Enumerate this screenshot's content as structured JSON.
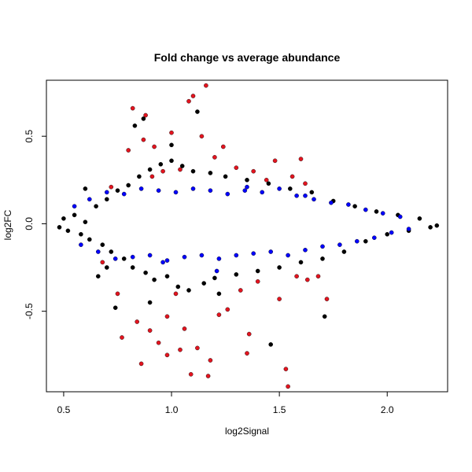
{
  "chart_data": {
    "type": "scatter",
    "title": "Fold change vs average abundance",
    "xlabel": "log2Signal",
    "ylabel": "log2FC",
    "xlim": [
      0.42,
      2.28
    ],
    "ylim": [
      -0.96,
      0.82
    ],
    "xticks": [
      0.5,
      1.0,
      1.5,
      2.0
    ],
    "xtick_labels": [
      "0.5",
      "1.0",
      "1.5",
      "2.0"
    ],
    "yticks": [
      -0.5,
      0.0,
      0.5
    ],
    "ytick_labels": [
      "-0.5",
      "0.0",
      "0.5"
    ],
    "grid": false,
    "legend": "none",
    "series": [
      {
        "color": "#000000",
        "points": [
          [
            0.48,
            -0.02
          ],
          [
            0.5,
            0.03
          ],
          [
            0.52,
            -0.04
          ],
          [
            0.55,
            0.05
          ],
          [
            0.58,
            -0.06
          ],
          [
            0.6,
            0.01
          ],
          [
            0.62,
            -0.09
          ],
          [
            0.65,
            0.1
          ],
          [
            0.68,
            -0.12
          ],
          [
            0.7,
            0.14
          ],
          [
            0.72,
            -0.16
          ],
          [
            0.75,
            0.19
          ],
          [
            0.78,
            -0.2
          ],
          [
            0.8,
            0.22
          ],
          [
            0.82,
            -0.25
          ],
          [
            0.85,
            0.27
          ],
          [
            0.88,
            -0.28
          ],
          [
            0.9,
            0.31
          ],
          [
            0.92,
            -0.32
          ],
          [
            0.95,
            0.34
          ],
          [
            0.98,
            -0.3
          ],
          [
            1.0,
            0.36
          ],
          [
            1.03,
            -0.36
          ],
          [
            1.05,
            0.33
          ],
          [
            1.08,
            -0.38
          ],
          [
            1.1,
            0.3
          ],
          [
            1.12,
            0.64
          ],
          [
            1.15,
            -0.34
          ],
          [
            1.18,
            0.29
          ],
          [
            1.2,
            -0.31
          ],
          [
            1.25,
            0.27
          ],
          [
            1.3,
            -0.29
          ],
          [
            1.35,
            0.25
          ],
          [
            1.4,
            -0.27
          ],
          [
            1.45,
            0.23
          ],
          [
            1.46,
            -0.69
          ],
          [
            1.5,
            -0.25
          ],
          [
            1.55,
            0.2
          ],
          [
            1.6,
            -0.22
          ],
          [
            1.65,
            0.18
          ],
          [
            1.7,
            -0.2
          ],
          [
            1.71,
            -0.53
          ],
          [
            1.75,
            0.13
          ],
          [
            1.8,
            -0.16
          ],
          [
            1.85,
            0.1
          ],
          [
            1.9,
            -0.1
          ],
          [
            1.95,
            0.07
          ],
          [
            2.0,
            -0.06
          ],
          [
            2.05,
            0.05
          ],
          [
            2.1,
            -0.04
          ],
          [
            2.15,
            0.03
          ],
          [
            2.2,
            -0.02
          ],
          [
            2.23,
            -0.01
          ],
          [
            0.83,
            0.56
          ],
          [
            0.9,
            -0.45
          ],
          [
            1.0,
            0.45
          ],
          [
            0.74,
            -0.48
          ],
          [
            1.22,
            -0.4
          ],
          [
            0.87,
            0.6
          ],
          [
            0.66,
            -0.3
          ],
          [
            0.6,
            0.2
          ],
          [
            0.7,
            -0.25
          ]
        ]
      },
      {
        "color": "#0000ff",
        "points": [
          [
            0.55,
            0.1
          ],
          [
            0.58,
            -0.12
          ],
          [
            0.62,
            0.14
          ],
          [
            0.66,
            -0.16
          ],
          [
            0.7,
            0.18
          ],
          [
            0.74,
            -0.2
          ],
          [
            0.78,
            0.17
          ],
          [
            0.82,
            -0.19
          ],
          [
            0.86,
            0.2
          ],
          [
            0.9,
            -0.18
          ],
          [
            0.94,
            0.19
          ],
          [
            0.98,
            -0.21
          ],
          [
            1.02,
            0.18
          ],
          [
            1.06,
            -0.19
          ],
          [
            1.1,
            0.2
          ],
          [
            1.14,
            -0.18
          ],
          [
            1.18,
            0.19
          ],
          [
            1.22,
            -0.2
          ],
          [
            1.26,
            0.17
          ],
          [
            1.3,
            -0.18
          ],
          [
            1.34,
            0.19
          ],
          [
            1.38,
            -0.17
          ],
          [
            1.42,
            0.18
          ],
          [
            1.46,
            -0.16
          ],
          [
            1.5,
            0.2
          ],
          [
            1.54,
            -0.18
          ],
          [
            1.58,
            0.16
          ],
          [
            1.62,
            -0.15
          ],
          [
            1.66,
            0.14
          ],
          [
            1.7,
            -0.13
          ],
          [
            1.74,
            0.12
          ],
          [
            1.78,
            -0.12
          ],
          [
            1.82,
            0.11
          ],
          [
            1.86,
            -0.1
          ],
          [
            1.9,
            0.08
          ],
          [
            1.94,
            -0.08
          ],
          [
            1.98,
            0.06
          ],
          [
            2.02,
            -0.05
          ],
          [
            2.06,
            0.04
          ],
          [
            2.1,
            -0.03
          ],
          [
            1.21,
            -0.27
          ],
          [
            1.62,
            0.16
          ],
          [
            1.35,
            0.21
          ],
          [
            0.96,
            -0.22
          ]
        ]
      },
      {
        "color": "#e3141f",
        "points": [
          [
            0.68,
            -0.22
          ],
          [
            0.72,
            0.21
          ],
          [
            0.75,
            -0.4
          ],
          [
            0.77,
            -0.65
          ],
          [
            0.8,
            0.42
          ],
          [
            0.82,
            0.66
          ],
          [
            0.84,
            -0.56
          ],
          [
            0.86,
            -0.8
          ],
          [
            0.88,
            0.62
          ],
          [
            0.9,
            -0.61
          ],
          [
            0.92,
            0.44
          ],
          [
            0.94,
            -0.68
          ],
          [
            0.96,
            0.3
          ],
          [
            0.98,
            -0.53
          ],
          [
            1.0,
            0.52
          ],
          [
            1.02,
            -0.4
          ],
          [
            1.04,
            0.31
          ],
          [
            1.06,
            -0.6
          ],
          [
            1.08,
            0.7
          ],
          [
            1.09,
            -0.86
          ],
          [
            1.1,
            0.73
          ],
          [
            1.12,
            -0.71
          ],
          [
            1.14,
            0.5
          ],
          [
            1.16,
            0.79
          ],
          [
            1.17,
            -0.87
          ],
          [
            1.18,
            -0.78
          ],
          [
            1.2,
            0.38
          ],
          [
            1.22,
            -0.52
          ],
          [
            1.24,
            0.44
          ],
          [
            1.26,
            -0.49
          ],
          [
            1.3,
            0.32
          ],
          [
            1.32,
            -0.38
          ],
          [
            1.35,
            -0.74
          ],
          [
            1.36,
            -0.63
          ],
          [
            1.38,
            0.3
          ],
          [
            1.4,
            -0.33
          ],
          [
            1.44,
            0.25
          ],
          [
            1.48,
            0.36
          ],
          [
            1.5,
            -0.43
          ],
          [
            1.53,
            -0.83
          ],
          [
            1.54,
            -0.93
          ],
          [
            1.56,
            0.27
          ],
          [
            1.58,
            -0.3
          ],
          [
            1.6,
            0.37
          ],
          [
            1.63,
            -0.32
          ],
          [
            1.68,
            -0.3
          ],
          [
            1.72,
            -0.43
          ],
          [
            1.62,
            0.23
          ],
          [
            0.87,
            0.48
          ],
          [
            0.91,
            0.27
          ],
          [
            0.98,
            -0.75
          ],
          [
            1.04,
            -0.72
          ]
        ]
      }
    ]
  }
}
